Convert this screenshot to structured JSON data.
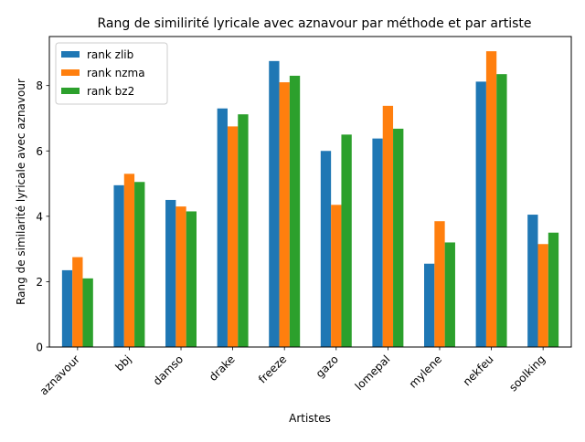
{
  "chart_data": {
    "type": "bar",
    "title": "Rang de similirité lyricale avec aznavour par méthode et par artiste",
    "xlabel": "Artistes",
    "ylabel": "Rang de similarité lyricale avec aznavour",
    "categories": [
      "aznavour",
      "bbj",
      "damso",
      "drake",
      "freeze",
      "gazo",
      "lomepal",
      "mylene",
      "nekfeu",
      "soolking"
    ],
    "series": [
      {
        "name": "rank zlib",
        "color": "#1f77b4",
        "values": [
          2.35,
          4.95,
          4.5,
          7.3,
          8.75,
          6.0,
          6.38,
          2.55,
          8.12,
          4.05
        ]
      },
      {
        "name": "rank nzma",
        "color": "#ff7f0e",
        "values": [
          2.75,
          5.3,
          4.3,
          6.75,
          8.1,
          4.35,
          7.38,
          3.85,
          9.05,
          3.15
        ]
      },
      {
        "name": "rank bz2",
        "color": "#2ca02c",
        "values": [
          2.1,
          5.05,
          4.15,
          7.12,
          8.3,
          6.5,
          6.68,
          3.2,
          8.35,
          3.5
        ]
      }
    ],
    "ylim": [
      0,
      9.5
    ],
    "yticks": [
      0,
      2,
      4,
      6,
      8
    ],
    "grid": false,
    "legend_position": "top-left"
  }
}
